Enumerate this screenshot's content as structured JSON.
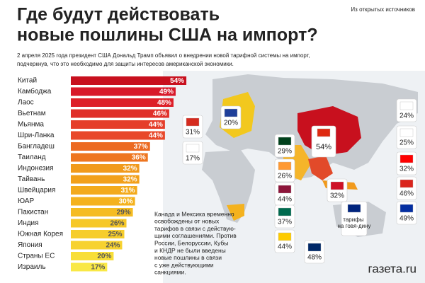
{
  "header": {
    "title_lines": [
      "Где будут действовать",
      "новые пошлины США на импорт?"
    ],
    "source": "Из открытых источников",
    "subtitle_lines": [
      "2 апреля 2025 года президент США Дональд Трамп объявил о внедрении новой тарифной системы на импорт,",
      "подчеркнув, что это необходимо для защиты интересов американской экономики."
    ]
  },
  "chart_data": {
    "type": "bar",
    "orientation": "horizontal",
    "categories": [
      "Китай",
      "Камбоджа",
      "Лаос",
      "Вьетнам",
      "Мьянма",
      "Шри-Ланка",
      "Бангладеш",
      "Таиланд",
      "Индонезия",
      "Тайвань",
      "Швейцария",
      "ЮАР",
      "Пакистан",
      "Индия",
      "Южная Корея",
      "Япония",
      "Страны ЕС",
      "Израиль"
    ],
    "values": [
      54,
      49,
      48,
      46,
      44,
      44,
      37,
      36,
      32,
      32,
      31,
      30,
      29,
      26,
      25,
      24,
      20,
      17
    ],
    "value_labels": [
      "54%",
      "49%",
      "48%",
      "46%",
      "44%",
      "44%",
      "37%",
      "36%",
      "32%",
      "32%",
      "31%",
      "30%",
      "29%",
      "26%",
      "25%",
      "24%",
      "20%",
      "17%"
    ],
    "colors": [
      "#c8101e",
      "#d8192a",
      "#dd1f28",
      "#e0302a",
      "#e53e2a",
      "#e8482a",
      "#ec6a22",
      "#ee7620",
      "#f19a1c",
      "#f2a01b",
      "#f3aa1c",
      "#f4b21e",
      "#f5bc22",
      "#f6c828",
      "#f6cd2c",
      "#f7d230",
      "#f8de38",
      "#f9e846"
    ]
  },
  "map": {
    "callouts": [
      "31%",
      "20%",
      "17%",
      "29%",
      "26%",
      "54%",
      "44%",
      "37%",
      "44%",
      "32%",
      "48%",
      "24%",
      "25%",
      "32%",
      "46%",
      "49%",
      "тарифы на говя-дину"
    ],
    "note_lines": [
      "Канада и Мексика временно",
      "освобождены от новых",
      "тарифов в связи с действую-",
      "щими соглашениями. Против",
      "России, Белоруссии, Кубы",
      "и КНДР не были введены",
      "новые пошлины в связи",
      "с уже действующими",
      "санкциями."
    ]
  },
  "logo": "газета.ru"
}
